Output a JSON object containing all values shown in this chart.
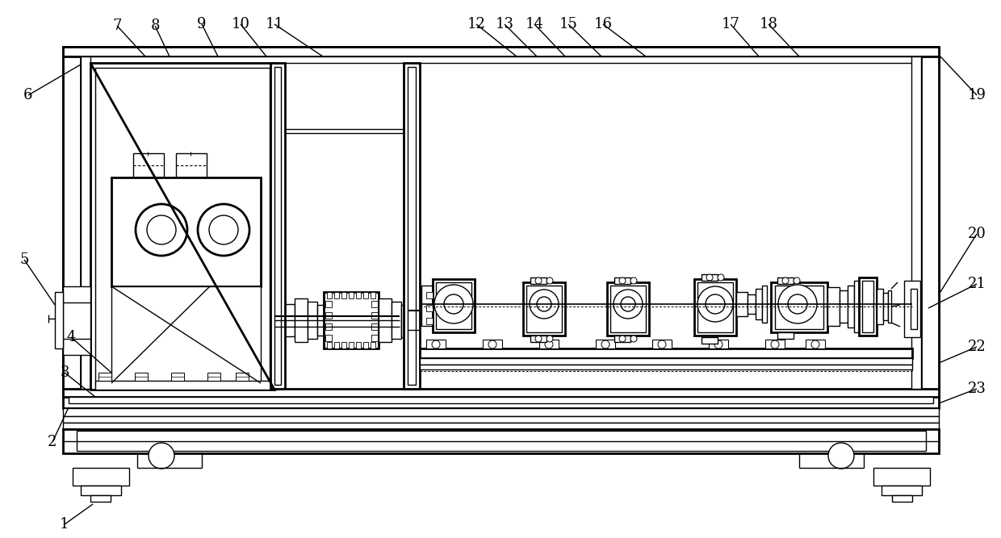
{
  "bg_color": "#ffffff",
  "lc": "#000000",
  "lw": 1.0,
  "tlw": 2.0,
  "fig_w": 12.4,
  "fig_h": 6.67
}
